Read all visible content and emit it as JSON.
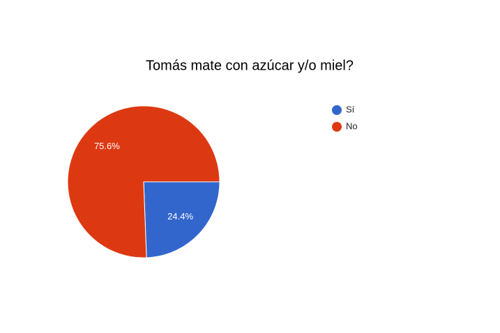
{
  "chart_data": {
    "type": "pie",
    "title": "Tomás mate con azúcar y/o miel?",
    "categories": [
      "Sí",
      "No"
    ],
    "values": [
      24.4,
      75.6
    ],
    "value_labels": [
      "24.4%",
      "75.6%"
    ],
    "colors": [
      "#3366cc",
      "#dc3912"
    ],
    "legend": "right"
  }
}
